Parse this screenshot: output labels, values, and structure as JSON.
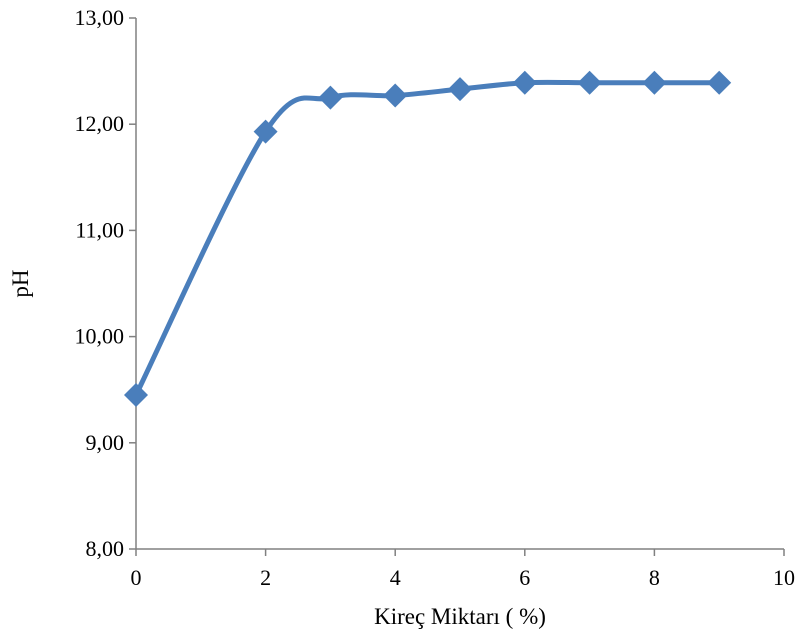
{
  "chart_data": {
    "type": "line",
    "title": "",
    "xlabel": "Kireç Miktarı ( %)",
    "ylabel": "pH",
    "xlim": [
      0,
      10
    ],
    "ylim": [
      8,
      13
    ],
    "x_ticks": [
      0,
      2,
      4,
      6,
      8,
      10
    ],
    "x_tick_labels": [
      "0",
      "2",
      "4",
      "6",
      "8",
      "10"
    ],
    "y_ticks": [
      8,
      9,
      10,
      11,
      12,
      13
    ],
    "y_tick_labels": [
      "8,00",
      "9,00",
      "10,00",
      "11,00",
      "12,00",
      "13,00"
    ],
    "grid": false,
    "legend": "none",
    "series": [
      {
        "color": "#4a7ebb",
        "marker": "diamond",
        "smooth": true,
        "x": [
          0,
          2,
          3,
          4,
          5,
          6,
          7,
          8,
          9
        ],
        "y": [
          9.45,
          11.93,
          12.25,
          12.27,
          12.33,
          12.39,
          12.39,
          12.39,
          12.39
        ]
      }
    ]
  }
}
